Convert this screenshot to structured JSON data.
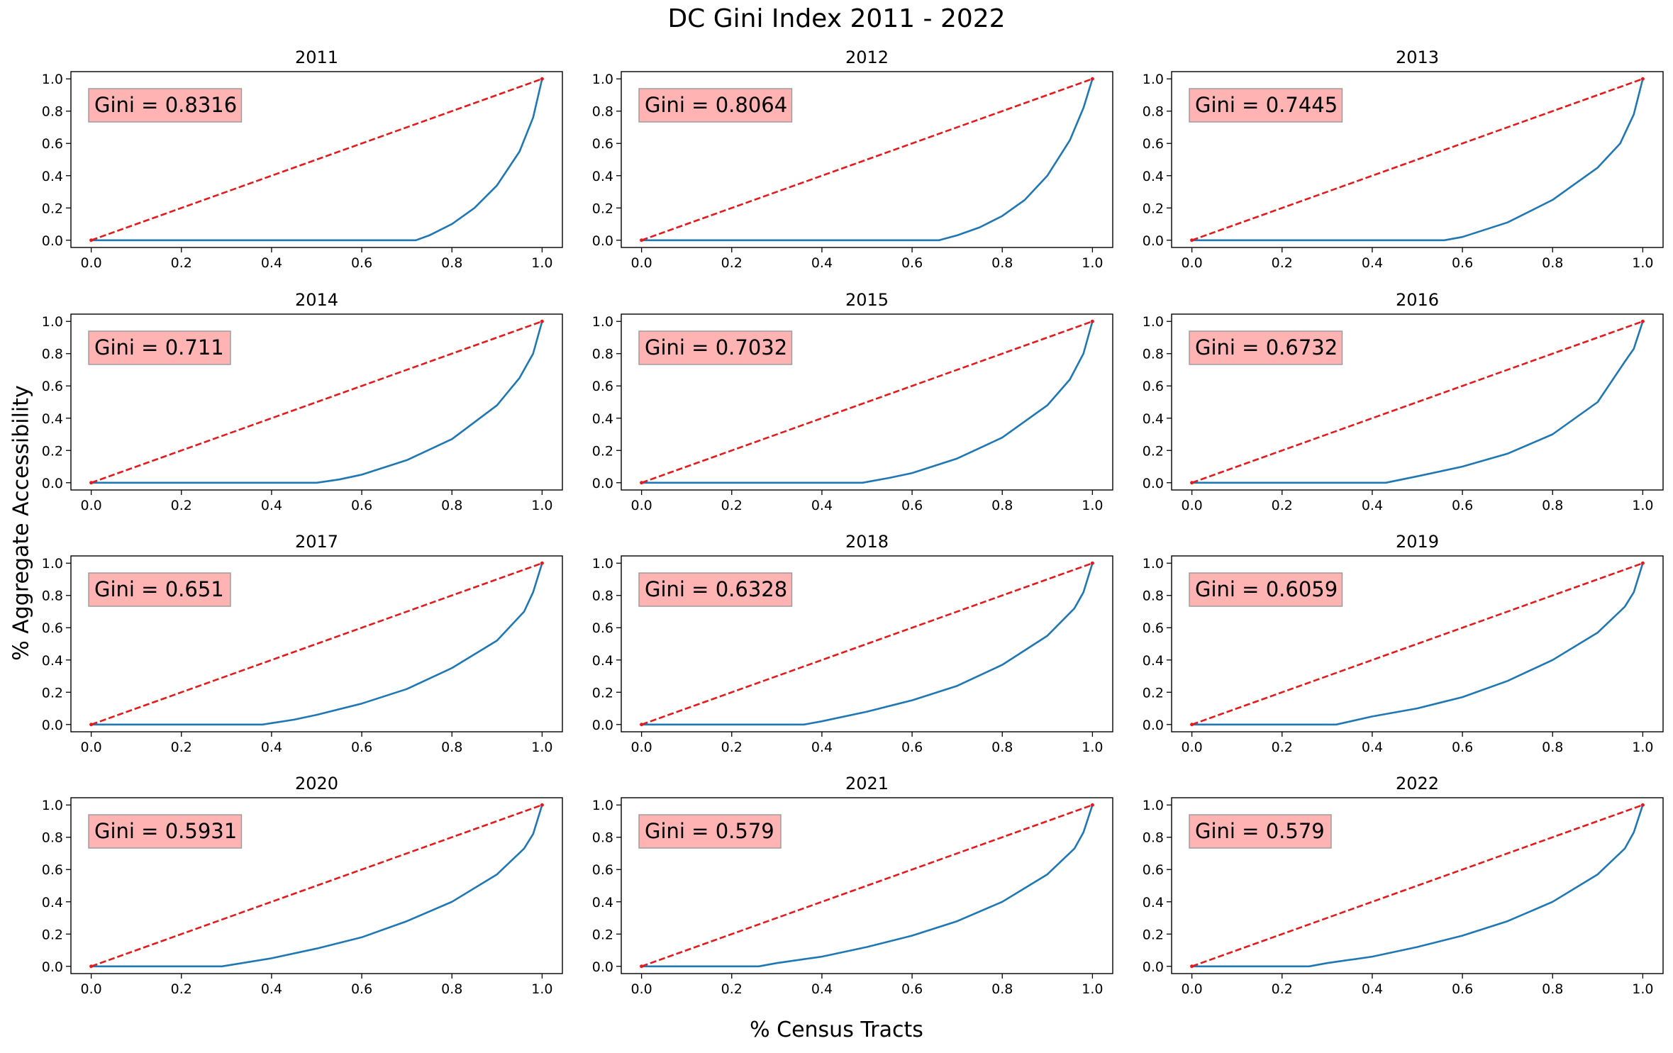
{
  "figure": {
    "title": "DC Gini Index 2011 - 2022",
    "xlabel": "% Census Tracts",
    "ylabel": "% Aggregate Accessibility"
  },
  "colors": {
    "curve": "#1f77b4",
    "equality": "#e41a1c",
    "annotation_box": "#ffb3b3",
    "annotation_border": "#999999"
  },
  "chart_data": [
    {
      "type": "line",
      "title": "2011",
      "annotation": "Gini = 0.8316",
      "gini": 0.8316,
      "xlim": [
        0,
        1
      ],
      "ylim": [
        0,
        1
      ],
      "xticks": [
        "0.0",
        "0.2",
        "0.4",
        "0.6",
        "0.8",
        "1.0"
      ],
      "yticks": [
        "0.0",
        "0.2",
        "0.4",
        "0.6",
        "0.8",
        "1.0"
      ],
      "series": [
        {
          "x": [
            0,
            0.72,
            0.75,
            0.8,
            0.85,
            0.9,
            0.95,
            0.98,
            1.0
          ],
          "y": [
            0,
            0,
            0.03,
            0.1,
            0.2,
            0.34,
            0.55,
            0.76,
            1.0
          ]
        },
        {
          "x": [
            0,
            1
          ],
          "y": [
            0,
            1
          ],
          "style": "dashed"
        }
      ]
    },
    {
      "type": "line",
      "title": "2012",
      "annotation": "Gini = 0.8064",
      "gini": 0.8064,
      "xlim": [
        0,
        1
      ],
      "ylim": [
        0,
        1
      ],
      "xticks": [
        "0.0",
        "0.2",
        "0.4",
        "0.6",
        "0.8",
        "1.0"
      ],
      "yticks": [
        "0.0",
        "0.2",
        "0.4",
        "0.6",
        "0.8",
        "1.0"
      ],
      "series": [
        {
          "x": [
            0,
            0.66,
            0.7,
            0.75,
            0.8,
            0.85,
            0.9,
            0.95,
            0.98,
            1.0
          ],
          "y": [
            0,
            0,
            0.03,
            0.08,
            0.15,
            0.25,
            0.4,
            0.62,
            0.82,
            1.0
          ]
        },
        {
          "x": [
            0,
            1
          ],
          "y": [
            0,
            1
          ],
          "style": "dashed"
        }
      ]
    },
    {
      "type": "line",
      "title": "2013",
      "annotation": "Gini = 0.7445",
      "gini": 0.7445,
      "xlim": [
        0,
        1
      ],
      "ylim": [
        0,
        1
      ],
      "xticks": [
        "0.0",
        "0.2",
        "0.4",
        "0.6",
        "0.8",
        "1.0"
      ],
      "yticks": [
        "0.0",
        "0.2",
        "0.4",
        "0.6",
        "0.8",
        "1.0"
      ],
      "series": [
        {
          "x": [
            0,
            0.56,
            0.6,
            0.7,
            0.8,
            0.9,
            0.95,
            0.98,
            1.0
          ],
          "y": [
            0,
            0,
            0.02,
            0.11,
            0.25,
            0.45,
            0.6,
            0.78,
            1.0
          ]
        },
        {
          "x": [
            0,
            1
          ],
          "y": [
            0,
            1
          ],
          "style": "dashed"
        }
      ]
    },
    {
      "type": "line",
      "title": "2014",
      "annotation": "Gini = 0.711",
      "gini": 0.711,
      "xlim": [
        0,
        1
      ],
      "ylim": [
        0,
        1
      ],
      "xticks": [
        "0.0",
        "0.2",
        "0.4",
        "0.6",
        "0.8",
        "1.0"
      ],
      "yticks": [
        "0.0",
        "0.2",
        "0.4",
        "0.6",
        "0.8",
        "1.0"
      ],
      "series": [
        {
          "x": [
            0,
            0.5,
            0.55,
            0.6,
            0.7,
            0.8,
            0.9,
            0.95,
            0.98,
            1.0
          ],
          "y": [
            0,
            0,
            0.02,
            0.05,
            0.14,
            0.27,
            0.48,
            0.65,
            0.8,
            1.0
          ]
        },
        {
          "x": [
            0,
            1
          ],
          "y": [
            0,
            1
          ],
          "style": "dashed"
        }
      ]
    },
    {
      "type": "line",
      "title": "2015",
      "annotation": "Gini = 0.7032",
      "gini": 0.7032,
      "xlim": [
        0,
        1
      ],
      "ylim": [
        0,
        1
      ],
      "xticks": [
        "0.0",
        "0.2",
        "0.4",
        "0.6",
        "0.8",
        "1.0"
      ],
      "yticks": [
        "0.0",
        "0.2",
        "0.4",
        "0.6",
        "0.8",
        "1.0"
      ],
      "series": [
        {
          "x": [
            0,
            0.49,
            0.55,
            0.6,
            0.7,
            0.8,
            0.9,
            0.95,
            0.98,
            1.0
          ],
          "y": [
            0,
            0,
            0.03,
            0.06,
            0.15,
            0.28,
            0.48,
            0.64,
            0.8,
            1.0
          ]
        },
        {
          "x": [
            0,
            1
          ],
          "y": [
            0,
            1
          ],
          "style": "dashed"
        }
      ]
    },
    {
      "type": "line",
      "title": "2016",
      "annotation": "Gini = 0.6732",
      "gini": 0.6732,
      "xlim": [
        0,
        1
      ],
      "ylim": [
        0,
        1
      ],
      "xticks": [
        "0.0",
        "0.2",
        "0.4",
        "0.6",
        "0.8",
        "1.0"
      ],
      "yticks": [
        "0.0",
        "0.2",
        "0.4",
        "0.6",
        "0.8",
        "1.0"
      ],
      "series": [
        {
          "x": [
            0,
            0.43,
            0.5,
            0.6,
            0.7,
            0.8,
            0.9,
            0.96,
            0.98,
            1.0
          ],
          "y": [
            0,
            0,
            0.04,
            0.1,
            0.18,
            0.3,
            0.5,
            0.75,
            0.83,
            1.0
          ]
        },
        {
          "x": [
            0,
            1
          ],
          "y": [
            0,
            1
          ],
          "style": "dashed"
        }
      ]
    },
    {
      "type": "line",
      "title": "2017",
      "annotation": "Gini = 0.651",
      "gini": 0.651,
      "xlim": [
        0,
        1
      ],
      "ylim": [
        0,
        1
      ],
      "xticks": [
        "0.0",
        "0.2",
        "0.4",
        "0.6",
        "0.8",
        "1.0"
      ],
      "yticks": [
        "0.0",
        "0.2",
        "0.4",
        "0.6",
        "0.8",
        "1.0"
      ],
      "series": [
        {
          "x": [
            0,
            0.38,
            0.45,
            0.5,
            0.6,
            0.7,
            0.8,
            0.9,
            0.96,
            0.98,
            1.0
          ],
          "y": [
            0,
            0,
            0.03,
            0.06,
            0.13,
            0.22,
            0.35,
            0.52,
            0.7,
            0.82,
            1.0
          ]
        },
        {
          "x": [
            0,
            1
          ],
          "y": [
            0,
            1
          ],
          "style": "dashed"
        }
      ]
    },
    {
      "type": "line",
      "title": "2018",
      "annotation": "Gini = 0.6328",
      "gini": 0.6328,
      "xlim": [
        0,
        1
      ],
      "ylim": [
        0,
        1
      ],
      "xticks": [
        "0.0",
        "0.2",
        "0.4",
        "0.6",
        "0.8",
        "1.0"
      ],
      "yticks": [
        "0.0",
        "0.2",
        "0.4",
        "0.6",
        "0.8",
        "1.0"
      ],
      "series": [
        {
          "x": [
            0,
            0.36,
            0.4,
            0.5,
            0.6,
            0.7,
            0.8,
            0.9,
            0.96,
            0.98,
            1.0
          ],
          "y": [
            0,
            0,
            0.02,
            0.08,
            0.15,
            0.24,
            0.37,
            0.55,
            0.72,
            0.82,
            1.0
          ]
        },
        {
          "x": [
            0,
            1
          ],
          "y": [
            0,
            1
          ],
          "style": "dashed"
        }
      ]
    },
    {
      "type": "line",
      "title": "2019",
      "annotation": "Gini = 0.6059",
      "gini": 0.6059,
      "xlim": [
        0,
        1
      ],
      "ylim": [
        0,
        1
      ],
      "xticks": [
        "0.0",
        "0.2",
        "0.4",
        "0.6",
        "0.8",
        "1.0"
      ],
      "yticks": [
        "0.0",
        "0.2",
        "0.4",
        "0.6",
        "0.8",
        "1.0"
      ],
      "series": [
        {
          "x": [
            0,
            0.32,
            0.4,
            0.5,
            0.6,
            0.7,
            0.8,
            0.9,
            0.96,
            0.98,
            1.0
          ],
          "y": [
            0,
            0,
            0.05,
            0.1,
            0.17,
            0.27,
            0.4,
            0.57,
            0.73,
            0.82,
            1.0
          ]
        },
        {
          "x": [
            0,
            1
          ],
          "y": [
            0,
            1
          ],
          "style": "dashed"
        }
      ]
    },
    {
      "type": "line",
      "title": "2020",
      "annotation": "Gini = 0.5931",
      "gini": 0.5931,
      "xlim": [
        0,
        1
      ],
      "ylim": [
        0,
        1
      ],
      "xticks": [
        "0.0",
        "0.2",
        "0.4",
        "0.6",
        "0.8",
        "1.0"
      ],
      "yticks": [
        "0.0",
        "0.2",
        "0.4",
        "0.6",
        "0.8",
        "1.0"
      ],
      "series": [
        {
          "x": [
            0,
            0.29,
            0.4,
            0.5,
            0.6,
            0.7,
            0.8,
            0.9,
            0.96,
            0.98,
            1.0
          ],
          "y": [
            0,
            0,
            0.05,
            0.11,
            0.18,
            0.28,
            0.4,
            0.57,
            0.73,
            0.82,
            1.0
          ]
        },
        {
          "x": [
            0,
            1
          ],
          "y": [
            0,
            1
          ],
          "style": "dashed"
        }
      ]
    },
    {
      "type": "line",
      "title": "2021",
      "annotation": "Gini = 0.579",
      "gini": 0.579,
      "xlim": [
        0,
        1
      ],
      "ylim": [
        0,
        1
      ],
      "xticks": [
        "0.0",
        "0.2",
        "0.4",
        "0.6",
        "0.8",
        "1.0"
      ],
      "yticks": [
        "0.0",
        "0.2",
        "0.4",
        "0.6",
        "0.8",
        "1.0"
      ],
      "series": [
        {
          "x": [
            0,
            0.26,
            0.3,
            0.4,
            0.5,
            0.6,
            0.7,
            0.8,
            0.9,
            0.96,
            0.98,
            1.0
          ],
          "y": [
            0,
            0,
            0.02,
            0.06,
            0.12,
            0.19,
            0.28,
            0.4,
            0.57,
            0.73,
            0.83,
            1.0
          ]
        },
        {
          "x": [
            0,
            1
          ],
          "y": [
            0,
            1
          ],
          "style": "dashed"
        }
      ]
    },
    {
      "type": "line",
      "title": "2022",
      "annotation": "Gini = 0.579",
      "gini": 0.579,
      "xlim": [
        0,
        1
      ],
      "ylim": [
        0,
        1
      ],
      "xticks": [
        "0.0",
        "0.2",
        "0.4",
        "0.6",
        "0.8",
        "1.0"
      ],
      "yticks": [
        "0.0",
        "0.2",
        "0.4",
        "0.6",
        "0.8",
        "1.0"
      ],
      "series": [
        {
          "x": [
            0,
            0.26,
            0.3,
            0.4,
            0.5,
            0.6,
            0.7,
            0.8,
            0.9,
            0.96,
            0.98,
            1.0
          ],
          "y": [
            0,
            0,
            0.02,
            0.06,
            0.12,
            0.19,
            0.28,
            0.4,
            0.57,
            0.73,
            0.83,
            1.0
          ]
        },
        {
          "x": [
            0,
            1
          ],
          "y": [
            0,
            1
          ],
          "style": "dashed"
        }
      ]
    }
  ]
}
